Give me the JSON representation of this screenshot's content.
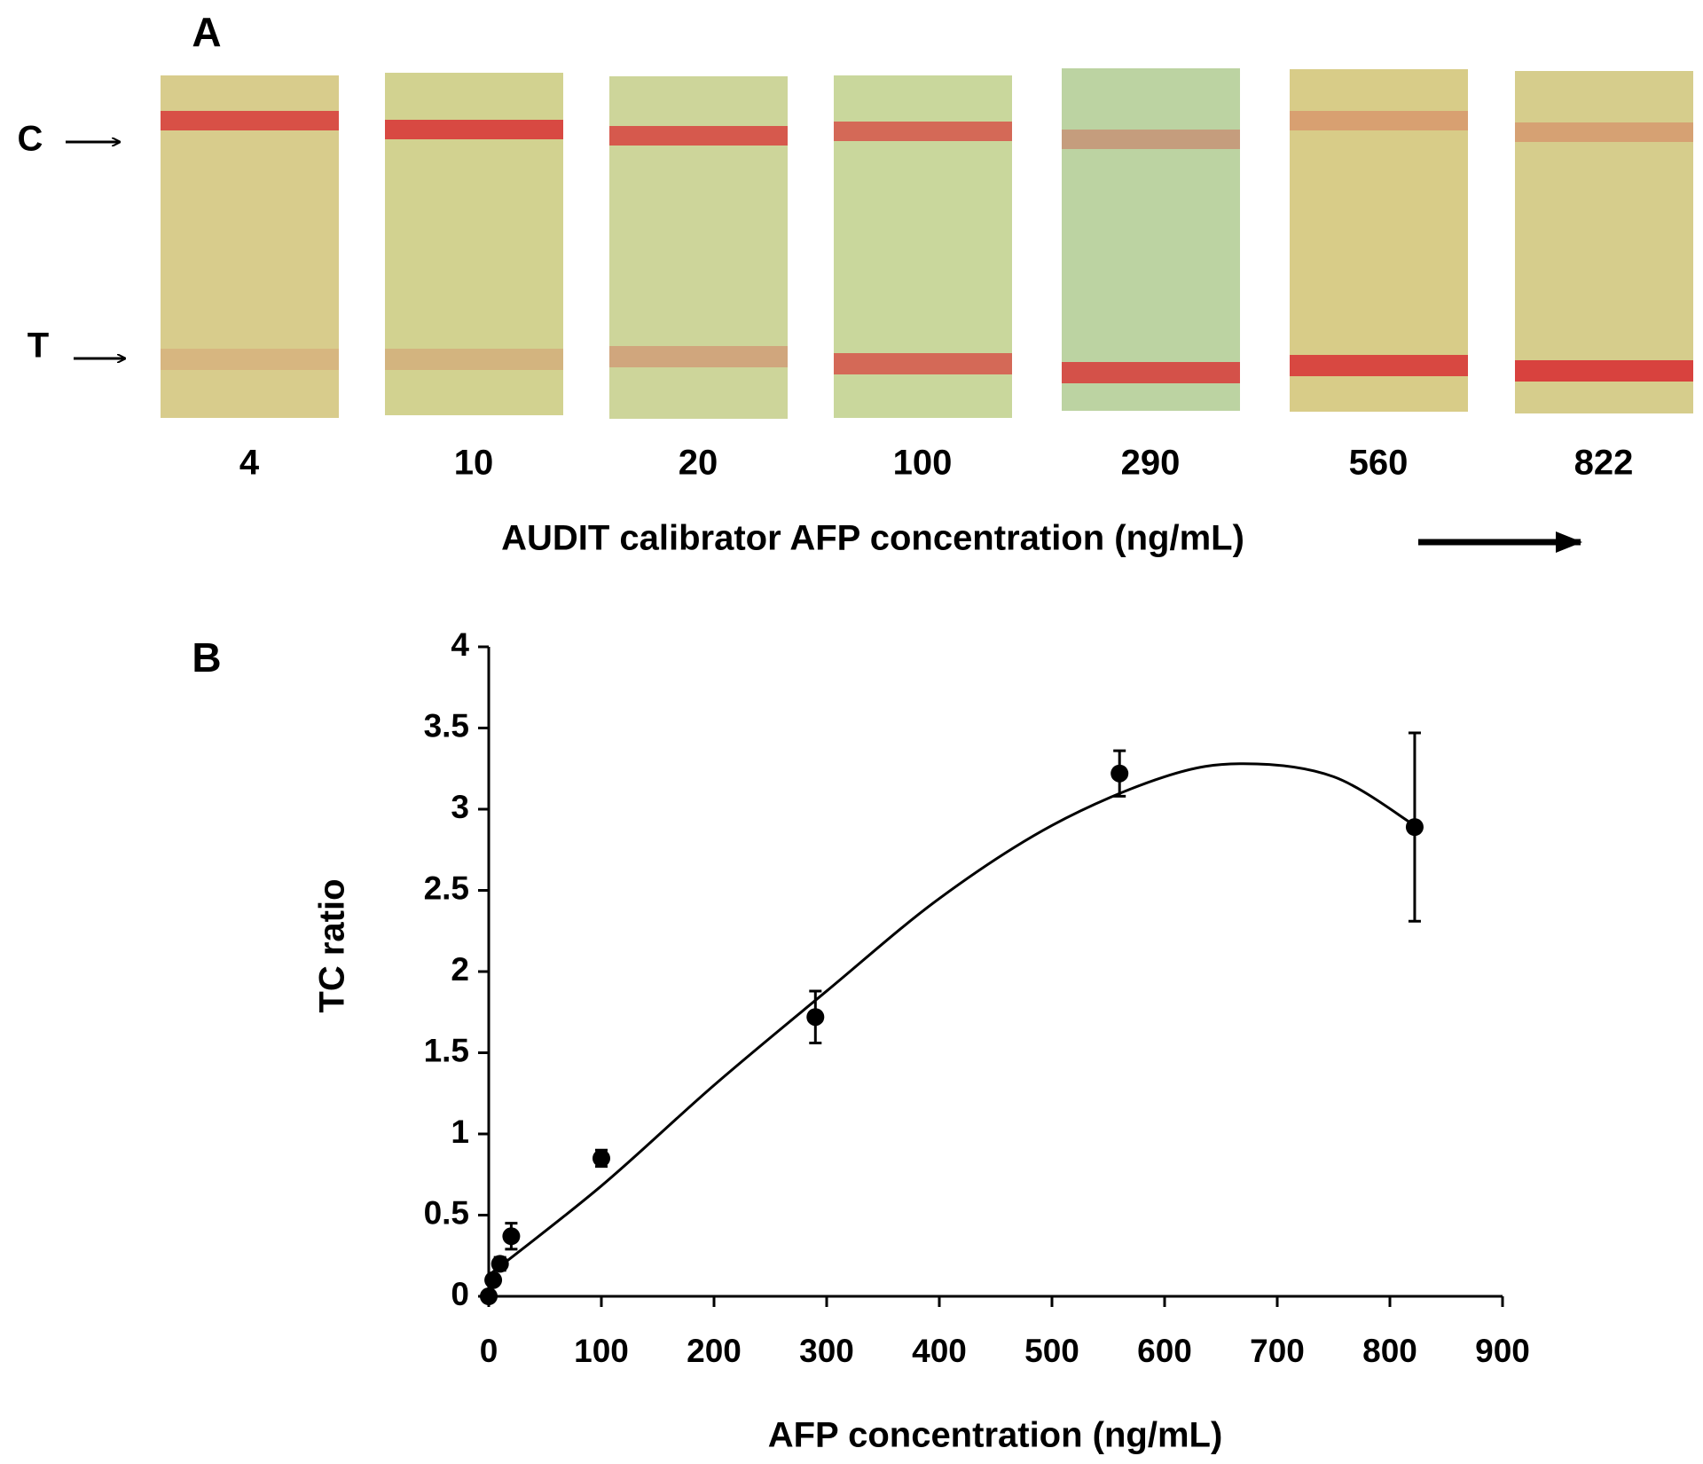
{
  "panel_a": {
    "label": "A",
    "control_label": "C",
    "test_label": "T",
    "concentrations": [
      4,
      10,
      20,
      100,
      290,
      560,
      822
    ],
    "axis_label": "AUDIT calibrator AFP concentration (ng/mL)"
  },
  "chart_data": {
    "type": "scatter",
    "panel_label": "B",
    "x_label": "AFP concentration (ng/mL)",
    "y_label": "TC ratio",
    "x": [
      0,
      4,
      10,
      20,
      100,
      290,
      560,
      822
    ],
    "values": [
      0,
      0.1,
      0.2,
      0.37,
      0.85,
      1.72,
      3.22,
      2.89
    ],
    "errors": [
      0.02,
      0.03,
      0.04,
      0.08,
      0.05,
      0.16,
      0.14,
      0.58
    ],
    "color": "#000000",
    "fit_x": [
      0,
      100,
      200,
      300,
      400,
      500,
      600,
      670,
      750,
      822
    ],
    "fit_values": [
      0.13,
      0.68,
      1.3,
      1.88,
      2.45,
      2.9,
      3.2,
      3.28,
      3.2,
      2.9
    ],
    "xlim": [
      0,
      900
    ],
    "xticks": [
      0,
      100,
      200,
      300,
      400,
      500,
      600,
      700,
      800,
      900
    ],
    "ylim": [
      0,
      4
    ],
    "yticks": [
      0,
      0.5,
      1,
      1.5,
      2,
      2.5,
      3,
      3.5,
      4
    ]
  }
}
